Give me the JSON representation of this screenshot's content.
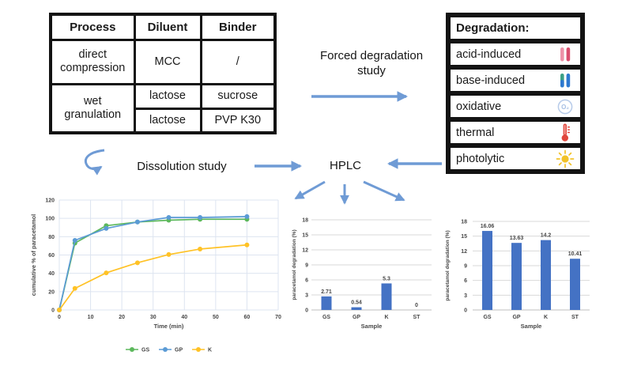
{
  "colors": {
    "arrow_blue": "#6F9BD5",
    "bar_blue": "#4472C4",
    "grid_line_chart": "#dde4f0",
    "grid_bar_chart": "#d9d9d9",
    "axis_text": "#474747",
    "table_border": "#131313",
    "acid_icon_pink": "#D94E6E",
    "acid_icon_pink_light": "#ED92A8",
    "base_icon_teal": "#3BA086",
    "base_icon_blue": "#2E79D0",
    "oxidative_icon_blue": "#B7CBE9",
    "thermal_icon_red": "#E0463C",
    "photolytic_icon_yellow": "#F2C227"
  },
  "formulation_table": {
    "headers": [
      "Process",
      "Diluent",
      "Binder"
    ],
    "rows": [
      [
        "direct compression",
        "MCC",
        "/"
      ],
      [
        "wet granulation",
        "lactose",
        "sucrose"
      ],
      [
        "lactose",
        "PVP K30"
      ]
    ]
  },
  "labels": {
    "forced_degradation": "Forced degradation study",
    "dissolution_study": "Dissolution study",
    "hplc": "HPLC"
  },
  "degradation_panel": {
    "title": "Degradation:",
    "items": [
      {
        "label": "acid-induced",
        "icon": "acid-test-tubes-icon"
      },
      {
        "label": "base-induced",
        "icon": "base-test-tubes-icon"
      },
      {
        "label": "oxidative",
        "icon": "oxygen-circle-icon"
      },
      {
        "label": "thermal",
        "icon": "thermometer-icon"
      },
      {
        "label": "photolytic",
        "icon": "sun-icon"
      }
    ]
  },
  "chart_data": [
    {
      "type": "line",
      "title": "",
      "xlabel": "Time (min)",
      "ylabel": "cumulative % of paracetamol",
      "xlim": [
        0,
        70
      ],
      "ylim": [
        0,
        120
      ],
      "xticks": [
        0,
        10,
        20,
        30,
        40,
        50,
        60,
        70
      ],
      "yticks": [
        0,
        20,
        40,
        60,
        80,
        100,
        120
      ],
      "grid": true,
      "legend_position": "bottom",
      "x": [
        0,
        5,
        15,
        25,
        35,
        45,
        60
      ],
      "series": [
        {
          "name": "GS",
          "color": "#5CB85C",
          "values": [
            0,
            73,
            92,
            96,
            98,
            99,
            99
          ]
        },
        {
          "name": "GP",
          "color": "#5B9BD5",
          "values": [
            0,
            76,
            89,
            96,
            101,
            101,
            102
          ]
        },
        {
          "name": "K",
          "color": "#FFC226",
          "values": [
            0,
            23.5,
            40.5,
            51.5,
            60.5,
            66.5,
            71
          ]
        }
      ]
    },
    {
      "type": "bar",
      "title": "",
      "xlabel": "Sample",
      "ylabel": "paracetamol degradation (%)",
      "categories": [
        "GS",
        "GP",
        "K",
        "ST"
      ],
      "values": [
        2.71,
        0.54,
        5.3,
        0
      ],
      "value_labels": [
        "2.71",
        "0.54",
        "5.3",
        "0"
      ],
      "ylim": [
        0,
        18
      ],
      "yticks": [
        0,
        3,
        6,
        9,
        12,
        15,
        18
      ],
      "bar_color": "#4472C4",
      "grid": true
    },
    {
      "type": "bar",
      "title": "",
      "xlabel": "Sample",
      "ylabel": "paracetamol degradation (%)",
      "categories": [
        "GS",
        "GP",
        "K",
        "ST"
      ],
      "values": [
        16.06,
        13.63,
        14.2,
        10.41
      ],
      "value_labels": [
        "16.06",
        "13.63",
        "14.2",
        "10.41"
      ],
      "ylim": [
        0,
        18
      ],
      "yticks": [
        0,
        3,
        6,
        9,
        12,
        15,
        18
      ],
      "bar_color": "#4472C4",
      "grid": true
    }
  ]
}
